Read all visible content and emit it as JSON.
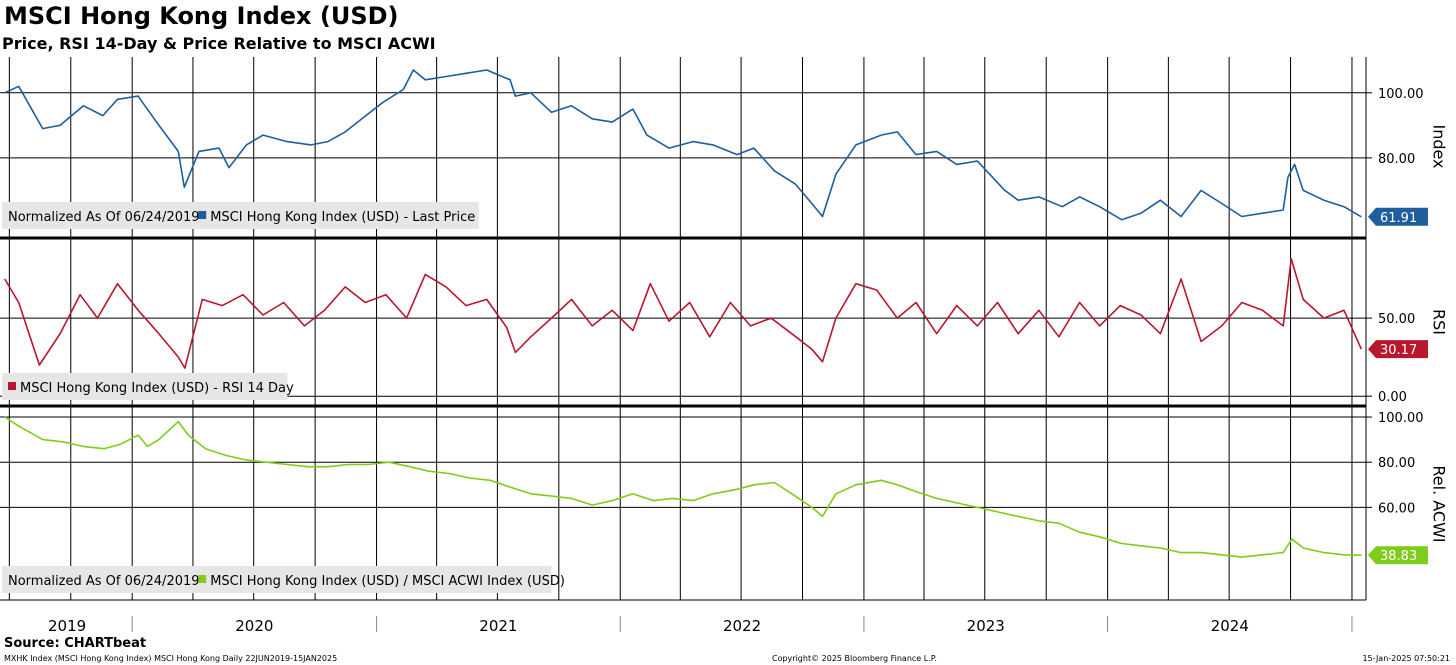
{
  "title": "MSCI Hong Kong Index (USD)",
  "subtitle": "Price, RSI 14-Day & Price Relative to MSCI ACWI",
  "colors": {
    "price": "#1f5e9e",
    "rsi": "#b8172e",
    "relative": "#7fcc1a",
    "grid": "#000000"
  },
  "chart_data": [
    {
      "type": "line",
      "panel": "price",
      "axis_label": "Index",
      "yticks": [
        80,
        100
      ],
      "ytick_labels": [
        "80.00",
        "100.00"
      ],
      "ylim": [
        56,
        111
      ],
      "legend": {
        "note": "Normalized As Of 06/24/2019",
        "series_label": "MSCI Hong Kong Index (USD) - Last Price"
      },
      "last_value_label": "61.91",
      "series": [
        {
          "name": "MSCI Hong Kong Index (USD) - Last Price",
          "x": [
            "2019-06-24",
            "2019-07-15",
            "2019-08-20",
            "2019-09-15",
            "2019-10-20",
            "2019-11-18",
            "2019-12-10",
            "2020-01-10",
            "2020-01-20",
            "2020-02-10",
            "2020-03-10",
            "2020-03-19",
            "2020-04-10",
            "2020-05-10",
            "2020-05-25",
            "2020-06-20",
            "2020-07-15",
            "2020-08-20",
            "2020-09-25",
            "2020-10-20",
            "2020-11-15",
            "2020-12-10",
            "2021-01-10",
            "2021-02-10",
            "2021-02-25",
            "2021-03-15",
            "2021-04-15",
            "2021-05-15",
            "2021-06-15",
            "2021-07-20",
            "2021-07-28",
            "2021-08-20",
            "2021-09-20",
            "2021-10-20",
            "2021-11-20",
            "2021-12-20",
            "2022-01-20",
            "2022-02-10",
            "2022-03-15",
            "2022-04-20",
            "2022-05-20",
            "2022-06-25",
            "2022-07-20",
            "2022-08-20",
            "2022-09-20",
            "2022-10-15",
            "2022-10-31",
            "2022-11-20",
            "2022-12-20",
            "2023-01-27",
            "2023-02-20",
            "2023-03-20",
            "2023-04-20",
            "2023-05-20",
            "2023-06-20",
            "2023-07-31",
            "2023-08-20",
            "2023-09-20",
            "2023-10-25",
            "2023-11-20",
            "2023-12-20",
            "2024-01-22",
            "2024-02-20",
            "2024-03-20",
            "2024-04-20",
            "2024-05-20",
            "2024-06-20",
            "2024-07-20",
            "2024-08-20",
            "2024-09-20",
            "2024-09-27",
            "2024-10-07",
            "2024-10-20",
            "2024-11-20",
            "2024-12-20",
            "2025-01-15"
          ],
          "y": [
            100,
            102,
            89,
            90,
            96,
            93,
            98,
            99,
            96,
            90,
            82,
            71,
            82,
            83,
            77,
            84,
            87,
            85,
            84,
            85,
            88,
            92,
            97,
            101,
            107,
            104,
            105,
            106,
            107,
            104,
            99,
            100,
            94,
            96,
            92,
            91,
            95,
            87,
            83,
            85,
            84,
            81,
            83,
            76,
            72,
            66,
            62,
            75,
            84,
            87,
            88,
            81,
            82,
            78,
            79,
            70,
            67,
            68,
            65,
            68,
            65,
            61,
            63,
            67,
            62,
            70,
            66,
            62,
            63,
            64,
            74,
            78,
            70,
            67,
            65,
            61.91
          ]
        }
      ]
    },
    {
      "type": "line",
      "panel": "rsi",
      "axis_label": "RSI",
      "yticks": [
        0,
        50
      ],
      "ytick_labels": [
        "0.00",
        "50.00"
      ],
      "ylim": [
        -5,
        100
      ],
      "legend": {
        "series_label": "MSCI Hong Kong Index (USD) - RSI 14 Day"
      },
      "last_value_label": "30.17",
      "series": [
        {
          "name": "MSCI Hong Kong Index (USD) - RSI 14 Day",
          "x": [
            "2019-06-24",
            "2019-07-15",
            "2019-08-15",
            "2019-09-15",
            "2019-10-15",
            "2019-11-10",
            "2019-12-10",
            "2020-01-10",
            "2020-02-10",
            "2020-03-10",
            "2020-03-20",
            "2020-04-15",
            "2020-05-15",
            "2020-06-15",
            "2020-07-15",
            "2020-08-15",
            "2020-09-15",
            "2020-10-15",
            "2020-11-15",
            "2020-12-15",
            "2021-01-15",
            "2021-02-15",
            "2021-03-15",
            "2021-04-15",
            "2021-05-15",
            "2021-06-15",
            "2021-07-15",
            "2021-07-28",
            "2021-08-20",
            "2021-09-20",
            "2021-10-20",
            "2021-11-20",
            "2021-12-20",
            "2022-01-20",
            "2022-02-15",
            "2022-03-15",
            "2022-04-15",
            "2022-05-15",
            "2022-06-15",
            "2022-07-15",
            "2022-08-15",
            "2022-09-15",
            "2022-10-15",
            "2022-10-31",
            "2022-11-20",
            "2022-12-20",
            "2023-01-20",
            "2023-02-20",
            "2023-03-20",
            "2023-04-20",
            "2023-05-20",
            "2023-06-20",
            "2023-07-20",
            "2023-08-20",
            "2023-09-20",
            "2023-10-20",
            "2023-11-20",
            "2023-12-20",
            "2024-01-20",
            "2024-02-20",
            "2024-03-20",
            "2024-04-20",
            "2024-05-20",
            "2024-06-20",
            "2024-07-20",
            "2024-08-20",
            "2024-09-20",
            "2024-10-02",
            "2024-10-20",
            "2024-11-20",
            "2024-12-20",
            "2025-01-15"
          ],
          "y": [
            75,
            60,
            20,
            40,
            65,
            50,
            72,
            55,
            40,
            25,
            18,
            62,
            58,
            65,
            52,
            60,
            45,
            55,
            70,
            60,
            65,
            50,
            78,
            70,
            58,
            62,
            44,
            28,
            38,
            50,
            62,
            45,
            55,
            42,
            72,
            48,
            60,
            38,
            60,
            45,
            50,
            40,
            30,
            22,
            50,
            72,
            68,
            50,
            60,
            40,
            58,
            45,
            60,
            40,
            55,
            38,
            60,
            45,
            58,
            52,
            40,
            75,
            35,
            45,
            60,
            55,
            45,
            88,
            62,
            50,
            55,
            30.17
          ]
        }
      ]
    },
    {
      "type": "line",
      "panel": "relative",
      "axis_label": "Rel. ACWI",
      "yticks": [
        60,
        80,
        100
      ],
      "ytick_labels": [
        "60.00",
        "80.00",
        "100.00"
      ],
      "ylim": [
        19,
        104
      ],
      "legend": {
        "note": "Normalized As Of 06/24/2019",
        "series_label": "MSCI Hong Kong Index (USD) / MSCI ACWI Index (USD)"
      },
      "last_value_label": "38.83",
      "series": [
        {
          "name": "MSCI Hong Kong Index (USD) / MSCI ACWI Index (USD)",
          "x": [
            "2019-06-24",
            "2019-07-15",
            "2019-08-20",
            "2019-09-20",
            "2019-10-20",
            "2019-11-20",
            "2019-12-15",
            "2020-01-10",
            "2020-01-24",
            "2020-02-10",
            "2020-03-10",
            "2020-03-25",
            "2020-04-20",
            "2020-05-20",
            "2020-06-20",
            "2020-07-20",
            "2020-08-20",
            "2020-09-20",
            "2020-10-20",
            "2020-11-20",
            "2020-12-20",
            "2021-01-20",
            "2021-02-20",
            "2021-03-20",
            "2021-04-20",
            "2021-05-20",
            "2021-06-20",
            "2021-07-20",
            "2021-08-20",
            "2021-09-20",
            "2021-10-20",
            "2021-11-20",
            "2021-12-20",
            "2022-01-20",
            "2022-02-20",
            "2022-03-20",
            "2022-04-20",
            "2022-05-20",
            "2022-06-25",
            "2022-07-20",
            "2022-08-20",
            "2022-09-20",
            "2022-10-15",
            "2022-10-31",
            "2022-11-20",
            "2022-12-20",
            "2023-01-27",
            "2023-02-20",
            "2023-03-20",
            "2023-04-20",
            "2023-05-20",
            "2023-06-20",
            "2023-07-20",
            "2023-08-20",
            "2023-09-20",
            "2023-10-20",
            "2023-11-20",
            "2023-12-20",
            "2024-01-22",
            "2024-02-20",
            "2024-03-20",
            "2024-04-20",
            "2024-05-20",
            "2024-06-20",
            "2024-07-20",
            "2024-08-20",
            "2024-09-20",
            "2024-10-03",
            "2024-10-20",
            "2024-11-20",
            "2024-12-20",
            "2025-01-15"
          ],
          "y": [
            100,
            96,
            90,
            89,
            87,
            86,
            88,
            92,
            87,
            90,
            98,
            92,
            86,
            83,
            81,
            80,
            79,
            78,
            78,
            79,
            79,
            80,
            78,
            76,
            75,
            73,
            72,
            69,
            66,
            65,
            64,
            61,
            63,
            66,
            63,
            64,
            63,
            66,
            68,
            70,
            71,
            65,
            60,
            56,
            66,
            70,
            72,
            70,
            67,
            64,
            62,
            60,
            58,
            56,
            54,
            53,
            49,
            47,
            44,
            43,
            42,
            40,
            40,
            39,
            38,
            39,
            40,
            46,
            42,
            40,
            39,
            38.83
          ]
        }
      ]
    }
  ],
  "x_axis": {
    "range": [
      "2019-06-20",
      "2025-01-22"
    ],
    "years": [
      "2019",
      "2020",
      "2021",
      "2022",
      "2023",
      "2024"
    ]
  },
  "source": "Source: CHARTbeat",
  "footer": {
    "left": "MXHK Index (MSCI Hong Kong Index) MSCI Hong Kong  Daily 22JUN2019-15JAN2025",
    "center": "Copyright© 2025 Bloomberg Finance L.P.",
    "right": "15-Jan-2025 07:50:21"
  }
}
